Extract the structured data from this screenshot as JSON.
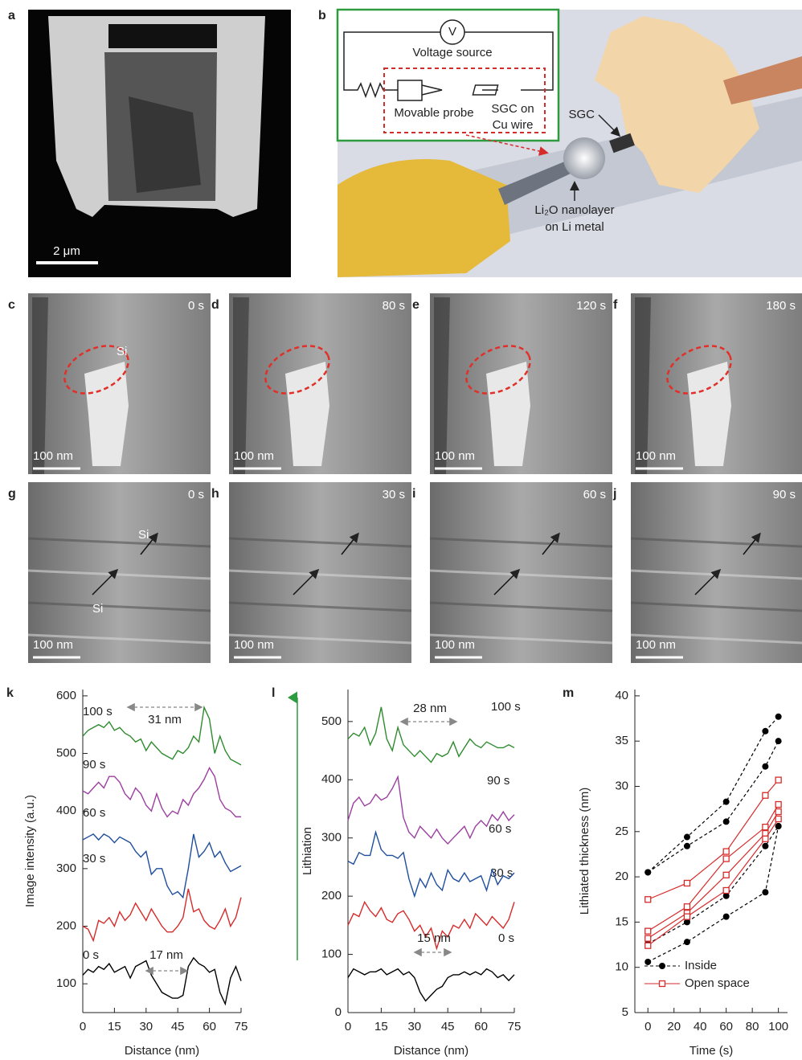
{
  "panels": [
    {
      "label": "a",
      "scale": "2 μm"
    },
    {
      "label": "b"
    },
    {
      "label": "c",
      "time": "0 s",
      "scale": "100 nm",
      "notes": [
        "Si"
      ]
    },
    {
      "label": "d",
      "time": "80 s",
      "scale": "100 nm"
    },
    {
      "label": "e",
      "time": "120 s",
      "scale": "100 nm"
    },
    {
      "label": "f",
      "time": "180 s",
      "scale": "100 nm"
    },
    {
      "label": "g",
      "time": "0 s",
      "scale": "100 nm",
      "notes": [
        "Si",
        "Si"
      ]
    },
    {
      "label": "h",
      "time": "30 s",
      "scale": "100 nm"
    },
    {
      "label": "i",
      "time": "60 s",
      "scale": "100 nm"
    },
    {
      "label": "j",
      "time": "90 s",
      "scale": "100 nm"
    }
  ],
  "diagram": {
    "meter": "V",
    "source": "Voltage source",
    "probe": "Movable probe",
    "sgc_wire": [
      "SGC on",
      "Cu wire"
    ],
    "sgc": "SGC",
    "li_layer": [
      "Li₂O nanolayer",
      "on Li metal"
    ]
  },
  "chart_data": [
    {
      "type": "line",
      "label": "k",
      "xlabel": "Distance (nm)",
      "ylabel": "Image intensity (a.u.)",
      "x": [
        0,
        2.5,
        5,
        7.5,
        10,
        12.5,
        15,
        17.5,
        20,
        22.5,
        25,
        27.5,
        30,
        32.5,
        35,
        37.5,
        40,
        42.5,
        45,
        47.5,
        50,
        52.5,
        55,
        57.5,
        60,
        62.5,
        65,
        67.5,
        70,
        72.5,
        75
      ],
      "xlim": [
        0,
        75
      ],
      "xticks": [
        0,
        15,
        30,
        45,
        60,
        75
      ],
      "ylim": [
        50,
        611
      ],
      "yticks": [
        100,
        200,
        300,
        400,
        500,
        600
      ],
      "series": [
        {
          "name": "0 s",
          "color": "#000000",
          "values": [
            115,
            125,
            120,
            130,
            125,
            135,
            120,
            125,
            130,
            110,
            130,
            135,
            140,
            115,
            100,
            85,
            80,
            75,
            75,
            80,
            130,
            145,
            135,
            130,
            120,
            125,
            85,
            65,
            110,
            130,
            105
          ]
        },
        {
          "name": "30 s",
          "color": "#d62b2b",
          "values": [
            200,
            195,
            175,
            210,
            205,
            215,
            200,
            225,
            210,
            220,
            240,
            225,
            210,
            230,
            215,
            200,
            190,
            190,
            200,
            215,
            265,
            225,
            230,
            210,
            200,
            195,
            210,
            230,
            200,
            215,
            250
          ]
        },
        {
          "name": "60 s",
          "color": "#1f4e9c",
          "values": [
            350,
            355,
            360,
            350,
            360,
            355,
            345,
            355,
            350,
            345,
            330,
            320,
            330,
            290,
            300,
            300,
            270,
            255,
            260,
            250,
            300,
            360,
            320,
            330,
            345,
            320,
            330,
            310,
            295,
            300,
            305
          ]
        },
        {
          "name": "90 s",
          "color": "#9b3fa0",
          "values": [
            435,
            430,
            440,
            450,
            440,
            460,
            460,
            450,
            430,
            420,
            440,
            430,
            410,
            400,
            430,
            405,
            390,
            400,
            395,
            420,
            410,
            430,
            440,
            455,
            475,
            460,
            420,
            405,
            400,
            390,
            390
          ]
        },
        {
          "name": "100 s",
          "color": "#2e8b2e",
          "values": [
            530,
            540,
            545,
            550,
            545,
            555,
            540,
            545,
            535,
            530,
            520,
            525,
            505,
            520,
            510,
            500,
            495,
            490,
            505,
            500,
            510,
            530,
            520,
            580,
            560,
            500,
            530,
            505,
            490,
            485,
            480
          ]
        }
      ],
      "annotations": [
        "31 nm",
        "17 nm"
      ]
    },
    {
      "type": "line",
      "label": "l",
      "xlabel": "Distance (nm)",
      "ylabel": "Lithiation",
      "x": [
        0,
        2.5,
        5,
        7.5,
        10,
        12.5,
        15,
        17.5,
        20,
        22.5,
        25,
        27.5,
        30,
        32.5,
        35,
        37.5,
        40,
        42.5,
        45,
        47.5,
        50,
        52.5,
        55,
        57.5,
        60,
        62.5,
        65,
        67.5,
        70,
        72.5,
        75
      ],
      "xlim": [
        0,
        75
      ],
      "xticks": [
        0,
        15,
        30,
        45,
        60,
        75
      ],
      "ylim": [
        0,
        555
      ],
      "yticks": [
        0,
        100,
        200,
        300,
        400,
        500
      ],
      "series": [
        {
          "name": "0 s",
          "color": "#000000",
          "values": [
            60,
            75,
            70,
            65,
            70,
            70,
            75,
            65,
            70,
            75,
            65,
            70,
            60,
            35,
            20,
            30,
            40,
            45,
            60,
            65,
            65,
            70,
            65,
            70,
            65,
            75,
            70,
            60,
            65,
            55,
            65
          ]
        },
        {
          "name": "30 s",
          "color": "#d62b2b",
          "values": [
            150,
            170,
            165,
            190,
            175,
            165,
            180,
            160,
            155,
            170,
            175,
            160,
            140,
            150,
            130,
            145,
            110,
            140,
            130,
            150,
            145,
            160,
            145,
            170,
            160,
            150,
            165,
            155,
            145,
            160,
            190
          ]
        },
        {
          "name": "60 s",
          "color": "#1f4e9c",
          "values": [
            260,
            255,
            275,
            270,
            270,
            310,
            280,
            270,
            270,
            265,
            275,
            230,
            200,
            230,
            215,
            240,
            220,
            210,
            245,
            230,
            225,
            240,
            225,
            230,
            235,
            210,
            245,
            220,
            235,
            230,
            240
          ]
        },
        {
          "name": "90 s",
          "color": "#9b3fa0",
          "values": [
            330,
            360,
            370,
            355,
            360,
            375,
            365,
            370,
            385,
            405,
            335,
            310,
            300,
            320,
            310,
            300,
            315,
            300,
            290,
            300,
            310,
            320,
            300,
            320,
            330,
            320,
            340,
            330,
            345,
            330,
            340
          ]
        },
        {
          "name": "100 s",
          "color": "#2e8b2e",
          "values": [
            470,
            480,
            475,
            490,
            460,
            480,
            525,
            470,
            450,
            490,
            460,
            450,
            440,
            450,
            440,
            430,
            445,
            440,
            445,
            465,
            440,
            455,
            470,
            460,
            455,
            465,
            460,
            455,
            455,
            460,
            455
          ]
        }
      ],
      "annotations": [
        "28 nm",
        "15 nm"
      ]
    },
    {
      "type": "markers",
      "label": "m",
      "xlabel": "Time (s)",
      "ylabel": "Lithiated thickness (nm)",
      "x": [
        0,
        30,
        60,
        90,
        100
      ],
      "xlim": [
        -10,
        107
      ],
      "xticks": [
        0,
        20,
        40,
        60,
        80,
        100
      ],
      "ylim": [
        5,
        40.7
      ],
      "yticks": [
        5,
        10,
        15,
        20,
        25,
        30,
        35,
        40
      ],
      "legend": "lower left",
      "series": [
        {
          "name": "Inside",
          "color": "#000000",
          "marker": "circle",
          "dashed": true,
          "lines": [
            [
              20.5,
              24.4,
              28.3,
              36.1,
              37.7
            ],
            [
              20.5,
              23.4,
              26.1,
              32.2,
              35.0
            ],
            [
              12.6,
              15.0,
              17.9,
              23.4,
              25.6
            ],
            [
              10.6,
              12.8,
              15.6,
              18.3,
              25.6
            ]
          ]
        },
        {
          "name": "Open space",
          "color": "#d62b2b",
          "marker": "square",
          "dashed": false,
          "lines": [
            [
              17.5,
              19.3,
              22.8,
              29.0,
              30.7
            ],
            [
              14.0,
              16.7,
              22.0,
              25.5,
              28.0
            ],
            [
              13.2,
              16.0,
              20.2,
              24.8,
              27.2
            ],
            [
              12.4,
              15.6,
              18.5,
              24.2,
              26.4
            ]
          ]
        }
      ]
    }
  ]
}
